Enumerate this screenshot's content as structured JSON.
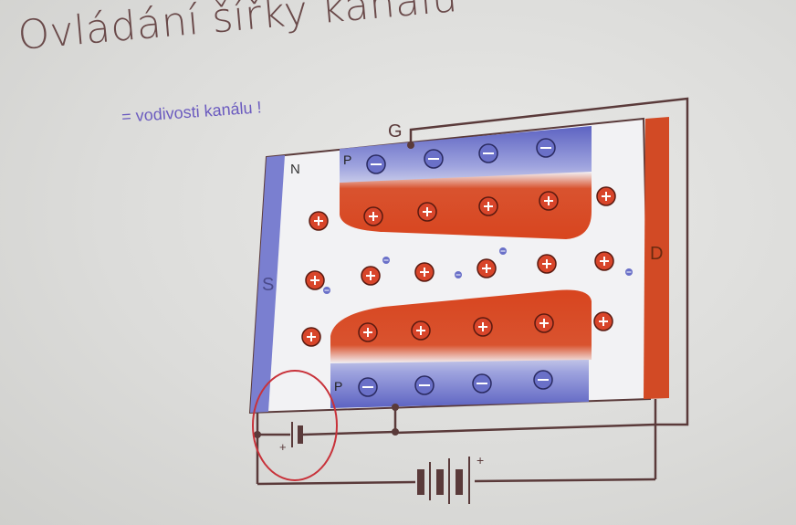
{
  "slide": {
    "title": "Ovládání šířky kanálu",
    "subtitle": "= vodivosti kanálu !"
  },
  "labels": {
    "gate": "G",
    "source": "S",
    "drain": "D",
    "n_region": "N",
    "p_top": "P",
    "p_bottom": "P",
    "battery_small_plus": "+",
    "battery_large_plus": "+"
  },
  "colors": {
    "p_region": "#6a70c8",
    "depletion": "#d84a2a",
    "source_bar": "#7a7fd0",
    "drain_bar": "#d24a25",
    "wire": "#5a3a3a",
    "highlight_circle": "#c8323a"
  }
}
